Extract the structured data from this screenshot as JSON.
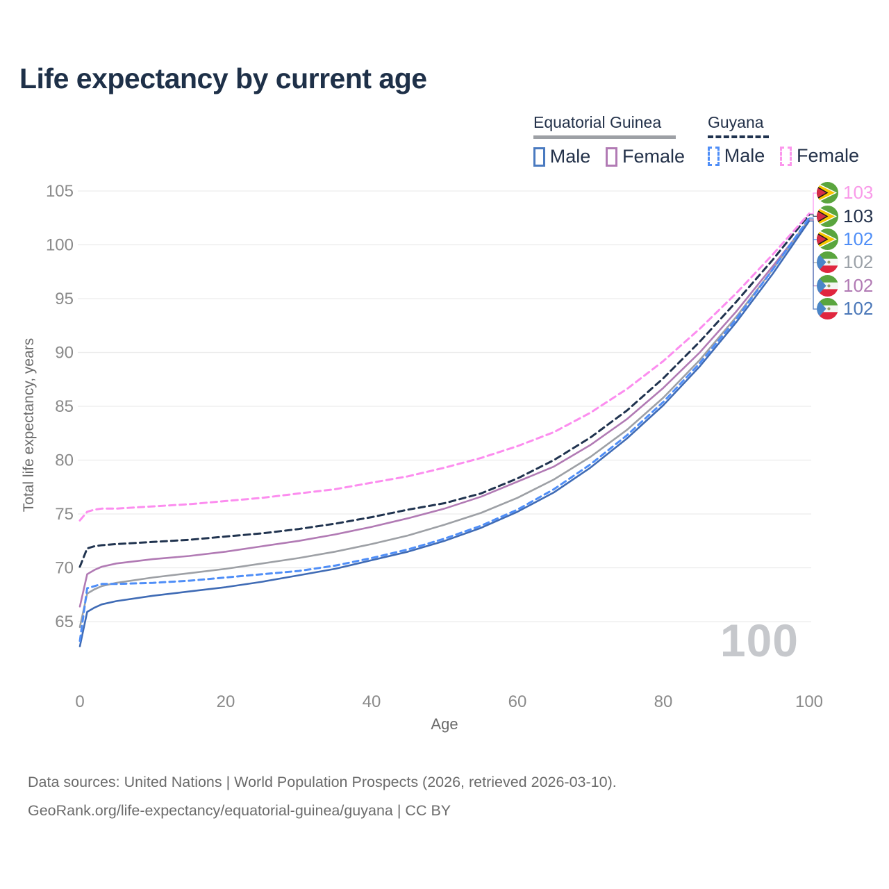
{
  "title": "Life expectancy by current age",
  "legend": {
    "equatorial_guinea": {
      "name": "Equatorial Guinea",
      "line_style": "solid",
      "underline_color": "#9da0a5",
      "male_label": "Male",
      "female_label": "Female",
      "male_color": "#4a7ac0",
      "female_color": "#b17ab4"
    },
    "guyana": {
      "name": "Guyana",
      "line_style": "dashed",
      "underline_color": "#20334f",
      "male_label": "Male",
      "female_label": "Female",
      "male_color": "#4f8ef7",
      "female_color": "#fc96ec"
    }
  },
  "watermark": "100",
  "footer": {
    "line1": "Data sources: United Nations | World Population Prospects (2026, retrieved 2026-03-10).",
    "line2": "GeoRank.org/life-expectancy/equatorial-guinea/guyana | CC BY"
  },
  "right_labels": [
    {
      "flag": "guyana",
      "country": "Guyana",
      "series": "guy_female",
      "value": "103",
      "color": "#f99ae9"
    },
    {
      "flag": "guyana",
      "country": "Guyana",
      "series": "guy_both",
      "value": "103",
      "color": "#22304a"
    },
    {
      "flag": "guyana",
      "country": "Guyana",
      "series": "guy_male",
      "value": "102",
      "color": "#4f8ef7"
    },
    {
      "flag": "eq",
      "country": "Equatorial Guinea",
      "series": "eq_both",
      "value": "102",
      "color": "#9ba1a8"
    },
    {
      "flag": "eq",
      "country": "Equatorial Guinea",
      "series": "eq_female",
      "value": "102",
      "color": "#b17ab4"
    },
    {
      "flag": "eq",
      "country": "Equatorial Guinea",
      "series": "eq_male",
      "value": "102",
      "color": "#4a77b8"
    }
  ],
  "chart_data": {
    "type": "line",
    "title": "Life expectancy by current age",
    "xlabel": "Age",
    "ylabel": "Total life expectancy, years",
    "xlim": [
      0,
      100
    ],
    "ylim": [
      65,
      105
    ],
    "x_ticks": [
      0,
      20,
      40,
      60,
      80,
      100
    ],
    "y_ticks": [
      65,
      70,
      75,
      80,
      85,
      90,
      95,
      100,
      105
    ],
    "grid": true,
    "gridline_color": "#ececec",
    "tick_color": "#8a8a8a",
    "axis_title_color": "#6a6a6a",
    "legend_position": "top-right",
    "ages": [
      0,
      1,
      2,
      3,
      5,
      10,
      15,
      20,
      25,
      30,
      35,
      40,
      45,
      50,
      55,
      60,
      65,
      70,
      75,
      80,
      85,
      90,
      95,
      100
    ],
    "series": [
      {
        "id": "eq_female",
        "name": "Equatorial Guinea Female",
        "country": "Equatorial Guinea",
        "sex": "female",
        "color": "#b17ab4",
        "dash": null,
        "width": 2.6,
        "values": [
          66.4,
          69.4,
          69.8,
          70.1,
          70.4,
          70.8,
          71.1,
          71.5,
          72.0,
          72.5,
          73.1,
          73.8,
          74.6,
          75.5,
          76.6,
          78.0,
          79.4,
          81.4,
          83.8,
          86.7,
          90.0,
          93.8,
          98.0,
          102.3
        ]
      },
      {
        "id": "eq_both",
        "name": "Equatorial Guinea Both sexes",
        "country": "Equatorial Guinea",
        "sex": "both",
        "color": "#9da0a5",
        "dash": null,
        "width": 2.6,
        "values": [
          64.5,
          67.6,
          68.0,
          68.3,
          68.6,
          69.1,
          69.5,
          69.9,
          70.4,
          70.9,
          71.5,
          72.2,
          73.0,
          74.0,
          75.1,
          76.5,
          78.2,
          80.3,
          82.8,
          85.8,
          89.3,
          93.3,
          97.7,
          102.4
        ]
      },
      {
        "id": "eq_male",
        "name": "Equatorial Guinea Male",
        "country": "Equatorial Guinea",
        "sex": "male",
        "color": "#3f6bb5",
        "dash": null,
        "width": 2.6,
        "values": [
          62.7,
          65.9,
          66.3,
          66.6,
          66.9,
          67.4,
          67.8,
          68.2,
          68.7,
          69.3,
          69.9,
          70.7,
          71.5,
          72.5,
          73.7,
          75.2,
          77.0,
          79.3,
          82.0,
          85.1,
          88.7,
          92.8,
          97.3,
          102.2
        ]
      },
      {
        "id": "guy_both",
        "name": "Guyana Both sexes",
        "country": "Guyana",
        "sex": "both",
        "color": "#20334f",
        "dash": [
          9,
          6
        ],
        "width": 3,
        "values": [
          70.1,
          71.8,
          72.0,
          72.1,
          72.2,
          72.4,
          72.6,
          72.9,
          73.2,
          73.6,
          74.1,
          74.7,
          75.4,
          76.0,
          76.9,
          78.3,
          80.0,
          82.1,
          84.6,
          87.6,
          91.0,
          94.7,
          98.6,
          102.8
        ]
      },
      {
        "id": "guy_female",
        "name": "Guyana Female",
        "country": "Guyana",
        "sex": "female",
        "color": "#fc8def",
        "dash": [
          9,
          6
        ],
        "width": 3,
        "values": [
          74.4,
          75.2,
          75.4,
          75.5,
          75.5,
          75.7,
          75.9,
          76.2,
          76.5,
          76.9,
          77.3,
          77.9,
          78.5,
          79.3,
          80.2,
          81.3,
          82.6,
          84.4,
          86.6,
          89.2,
          92.2,
          95.5,
          99.1,
          102.9
        ]
      },
      {
        "id": "guy_male",
        "name": "Guyana Male",
        "country": "Guyana",
        "sex": "male",
        "color": "#4f8ef7",
        "dash": [
          8,
          6
        ],
        "width": 3,
        "values": [
          63.2,
          68.1,
          68.3,
          68.5,
          68.5,
          68.6,
          68.8,
          69.1,
          69.4,
          69.7,
          70.2,
          70.9,
          71.7,
          72.7,
          73.9,
          75.4,
          77.3,
          79.6,
          82.3,
          85.4,
          89.0,
          93.1,
          97.7,
          102.5
        ]
      }
    ]
  }
}
